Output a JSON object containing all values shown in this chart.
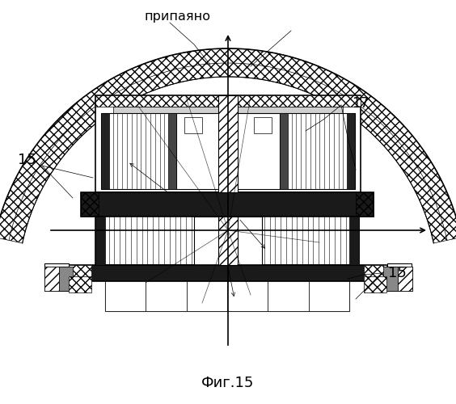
{
  "title": "Фиг.15",
  "label_pripaiano": "припаяно",
  "label_15_left": "15",
  "label_15_right": "15",
  "label_17": "17",
  "bg_color": "#ffffff",
  "line_color": "#000000",
  "figsize": [
    5.64,
    5.0
  ],
  "dpi": 100
}
